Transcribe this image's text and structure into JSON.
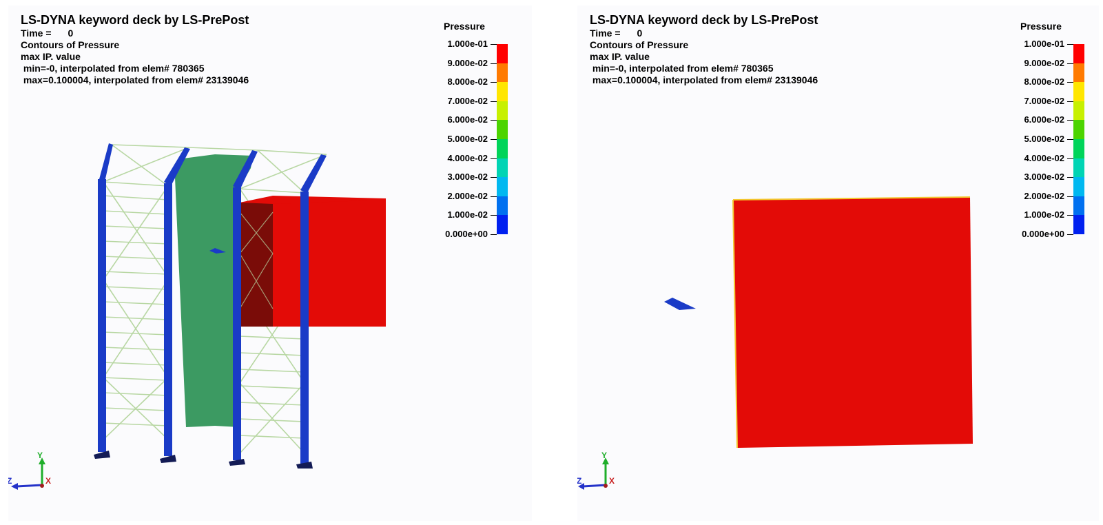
{
  "viewports": [
    {
      "id": "left",
      "title": "LS-DYNA keyword deck by LS-PrePost",
      "time_label": "Time =",
      "time_value": "0",
      "contour_label": "Contours of Pressure",
      "ip_label": "max IP. value",
      "min_line": " min=-0, interpolated from elem# 780365",
      "max_line": " max=0.100004, interpolated from elem# 23139046"
    },
    {
      "id": "right",
      "title": "LS-DYNA keyword deck by LS-PrePost",
      "time_label": "Time =",
      "time_value": "0",
      "contour_label": "Contours of Pressure",
      "ip_label": "max IP. value",
      "min_line": " min=-0, interpolated from elem# 780365",
      "max_line": " max=0.100004, interpolated from elem# 23139046"
    }
  ],
  "legend": {
    "title": "Pressure",
    "labels": [
      "1.000e-01",
      "9.000e-02",
      "8.000e-02",
      "7.000e-02",
      "6.000e-02",
      "5.000e-02",
      "4.000e-02",
      "3.000e-02",
      "2.000e-02",
      "1.000e-02",
      "0.000e+00"
    ],
    "colors": [
      "#ff0000",
      "#ff7a00",
      "#ffe600",
      "#c7f000",
      "#4cd400",
      "#00d45a",
      "#00d4b4",
      "#00b8f0",
      "#0070f0",
      "#0020f0"
    ]
  },
  "triad": {
    "y": "Y",
    "z": "Z",
    "x": "X"
  },
  "colors": {
    "column": "#1a3bc7",
    "water": "#3c9a62",
    "block": "#e30b07",
    "brace": "#b8d7a3"
  }
}
